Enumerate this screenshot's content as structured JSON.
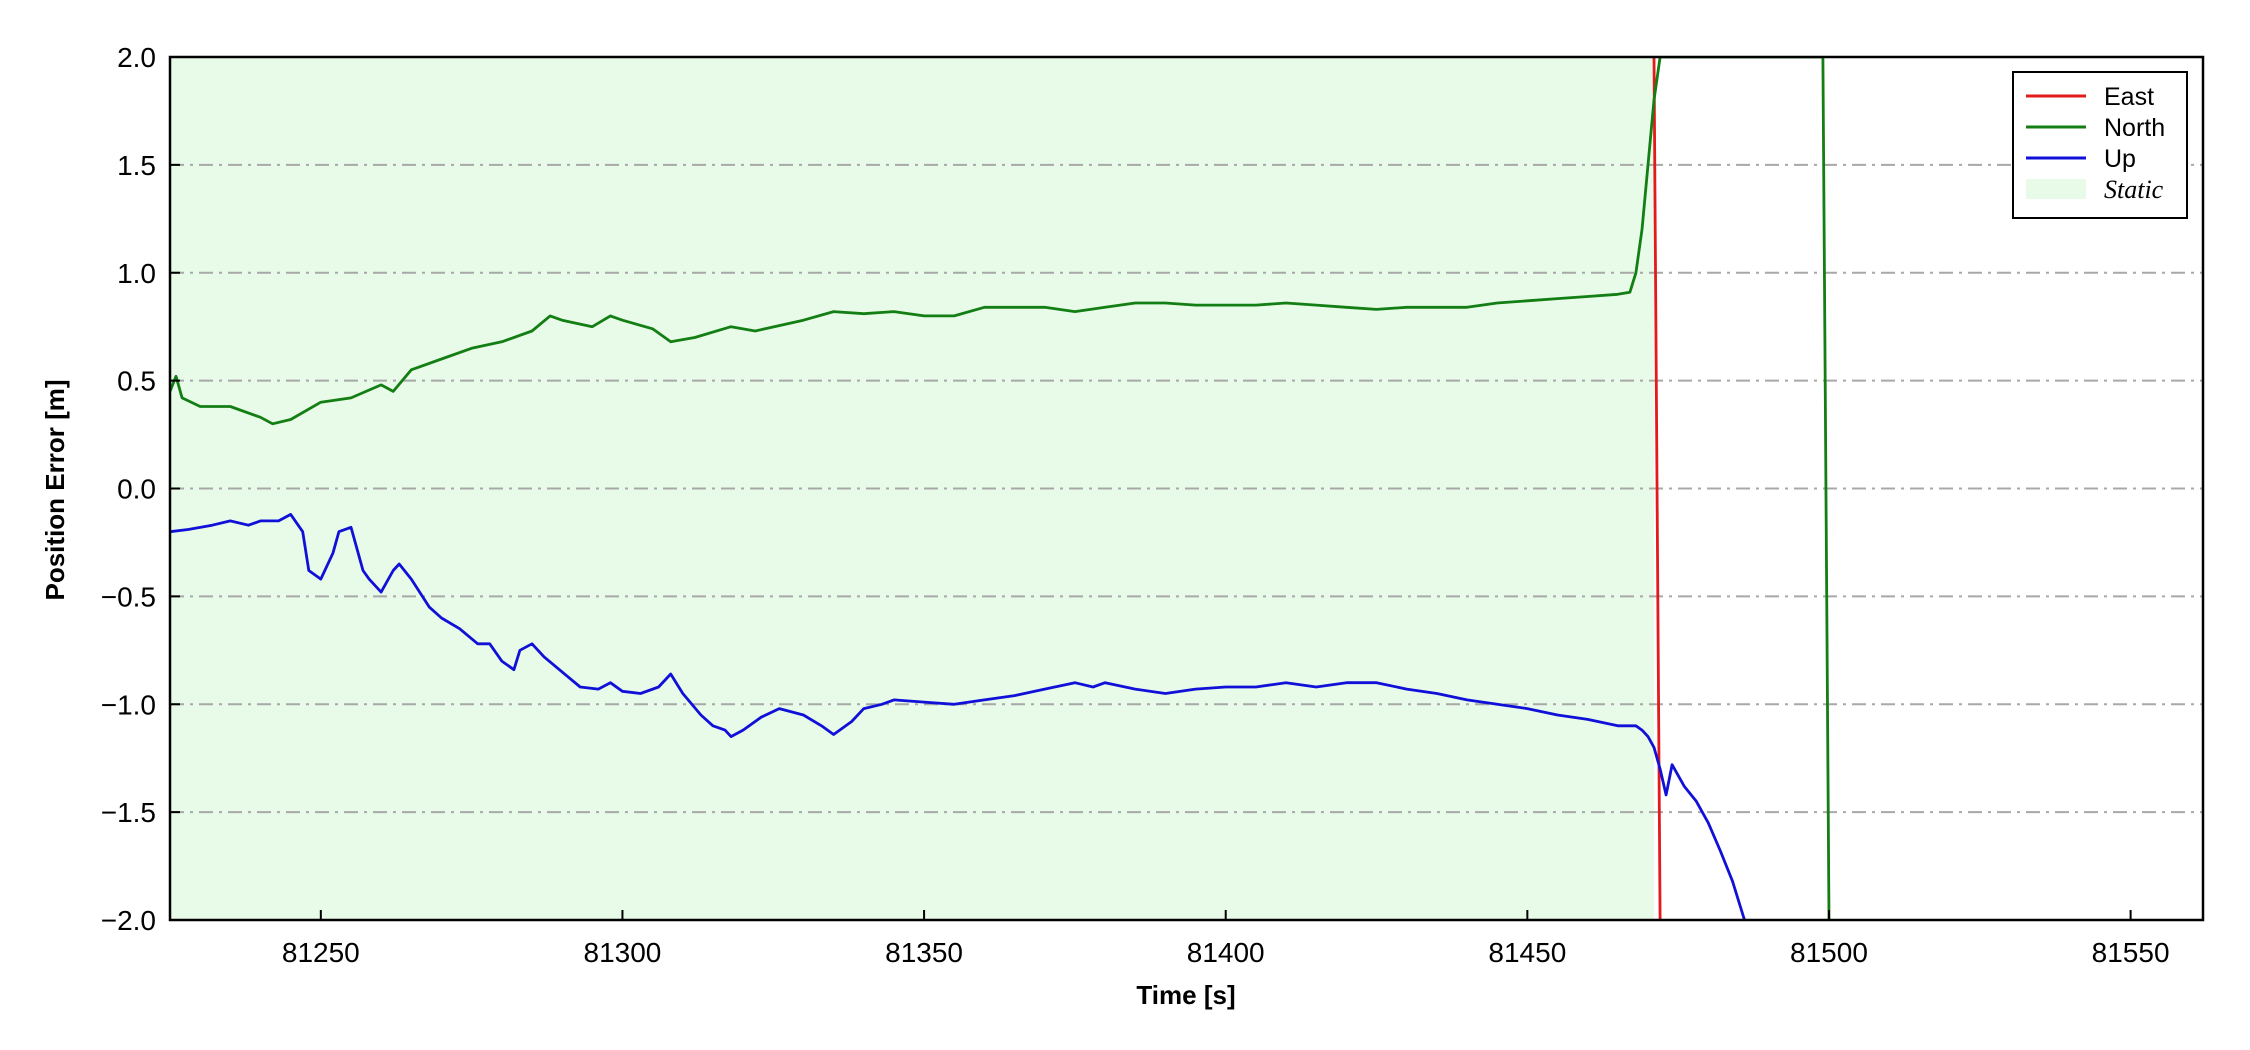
{
  "chart_data": {
    "type": "line",
    "xlabel": "Time [s]",
    "ylabel": "Position Error [m]",
    "xlim": [
      81225,
      81562
    ],
    "ylim": [
      -2.0,
      2.0
    ],
    "x_ticks": [
      81250,
      81300,
      81350,
      81400,
      81450,
      81500,
      81550
    ],
    "x_tick_labels": [
      "81250",
      "81300",
      "81350",
      "81400",
      "81450",
      "81500",
      "81550"
    ],
    "y_ticks": [
      -2.0,
      -1.5,
      -1.0,
      -0.5,
      0.0,
      0.5,
      1.0,
      1.5,
      2.0
    ],
    "y_tick_labels": [
      "−2.0",
      "−1.5",
      "−1.0",
      "−0.5",
      "0.0",
      "0.5",
      "1.0",
      "1.5",
      "2.0"
    ],
    "grid": "horizontal dash-dot",
    "legend_position": "top-right",
    "static_region": {
      "name": "Static",
      "x_start": 81225,
      "x_end": 81471,
      "color": "#e8fbe8"
    },
    "series": [
      {
        "name": "East",
        "color": "#e31a1c",
        "x": [
          81471.0,
          81472.0
        ],
        "y": [
          2.0,
          -2.0
        ]
      },
      {
        "name": "North",
        "color": "#137e13",
        "x": [
          81225,
          81226,
          81227,
          81230,
          81235,
          81240,
          81242,
          81245,
          81250,
          81255,
          81260,
          81262,
          81265,
          81270,
          81275,
          81280,
          81285,
          81288,
          81290,
          81295,
          81298,
          81300,
          81305,
          81308,
          81312,
          81318,
          81322,
          81330,
          81335,
          81340,
          81345,
          81350,
          81355,
          81360,
          81370,
          81375,
          81380,
          81385,
          81390,
          81395,
          81400,
          81405,
          81410,
          81415,
          81420,
          81425,
          81430,
          81435,
          81440,
          81445,
          81450,
          81455,
          81460,
          81465,
          81467,
          81468,
          81469,
          81470,
          81471,
          81472,
          81499.0,
          81500.0
        ],
        "y": [
          0.45,
          0.52,
          0.42,
          0.38,
          0.38,
          0.33,
          0.3,
          0.32,
          0.4,
          0.42,
          0.48,
          0.45,
          0.55,
          0.6,
          0.65,
          0.68,
          0.73,
          0.8,
          0.78,
          0.75,
          0.8,
          0.78,
          0.74,
          0.68,
          0.7,
          0.75,
          0.73,
          0.78,
          0.82,
          0.81,
          0.82,
          0.8,
          0.8,
          0.84,
          0.84,
          0.82,
          0.84,
          0.86,
          0.86,
          0.85,
          0.85,
          0.85,
          0.86,
          0.85,
          0.84,
          0.83,
          0.84,
          0.84,
          0.84,
          0.86,
          0.87,
          0.88,
          0.89,
          0.9,
          0.91,
          1.0,
          1.2,
          1.5,
          1.8,
          2.0,
          2.0,
          -2.0
        ]
      },
      {
        "name": "Up",
        "color": "#1010d8",
        "x": [
          81225,
          81228,
          81232,
          81235,
          81238,
          81240,
          81243,
          81245,
          81247,
          81248,
          81250,
          81252,
          81253,
          81255,
          81257,
          81258,
          81260,
          81262,
          81263,
          81265,
          81268,
          81270,
          81273,
          81276,
          81278,
          81280,
          81282,
          81283,
          81285,
          81287,
          81290,
          81293,
          81296,
          81298,
          81300,
          81303,
          81306,
          81308,
          81310,
          81313,
          81315,
          81317,
          81318,
          81320,
          81323,
          81326,
          81330,
          81333,
          81335,
          81338,
          81340,
          81343,
          81345,
          81350,
          81355,
          81360,
          81365,
          81370,
          81375,
          81378,
          81380,
          81385,
          81390,
          81395,
          81400,
          81405,
          81410,
          81415,
          81420,
          81425,
          81430,
          81435,
          81440,
          81445,
          81450,
          81455,
          81460,
          81465,
          81468,
          81469,
          81470,
          81471,
          81472,
          81473,
          81474,
          81476,
          81478,
          81480,
          81482,
          81484,
          81486.0
        ],
        "y": [
          -0.2,
          -0.19,
          -0.17,
          -0.15,
          -0.17,
          -0.15,
          -0.15,
          -0.12,
          -0.2,
          -0.38,
          -0.42,
          -0.3,
          -0.2,
          -0.18,
          -0.38,
          -0.42,
          -0.48,
          -0.38,
          -0.35,
          -0.42,
          -0.55,
          -0.6,
          -0.65,
          -0.72,
          -0.72,
          -0.8,
          -0.84,
          -0.75,
          -0.72,
          -0.78,
          -0.85,
          -0.92,
          -0.93,
          -0.9,
          -0.94,
          -0.95,
          -0.92,
          -0.86,
          -0.95,
          -1.05,
          -1.1,
          -1.12,
          -1.15,
          -1.12,
          -1.06,
          -1.02,
          -1.05,
          -1.1,
          -1.14,
          -1.08,
          -1.02,
          -1.0,
          -0.98,
          -0.99,
          -1.0,
          -0.98,
          -0.96,
          -0.93,
          -0.9,
          -0.92,
          -0.9,
          -0.93,
          -0.95,
          -0.93,
          -0.92,
          -0.92,
          -0.9,
          -0.92,
          -0.9,
          -0.9,
          -0.93,
          -0.95,
          -0.98,
          -1.0,
          -1.02,
          -1.05,
          -1.07,
          -1.1,
          -1.1,
          -1.12,
          -1.15,
          -1.2,
          -1.3,
          -1.42,
          -1.28,
          -1.38,
          -1.45,
          -1.55,
          -1.68,
          -1.82,
          -2.0
        ]
      }
    ]
  }
}
